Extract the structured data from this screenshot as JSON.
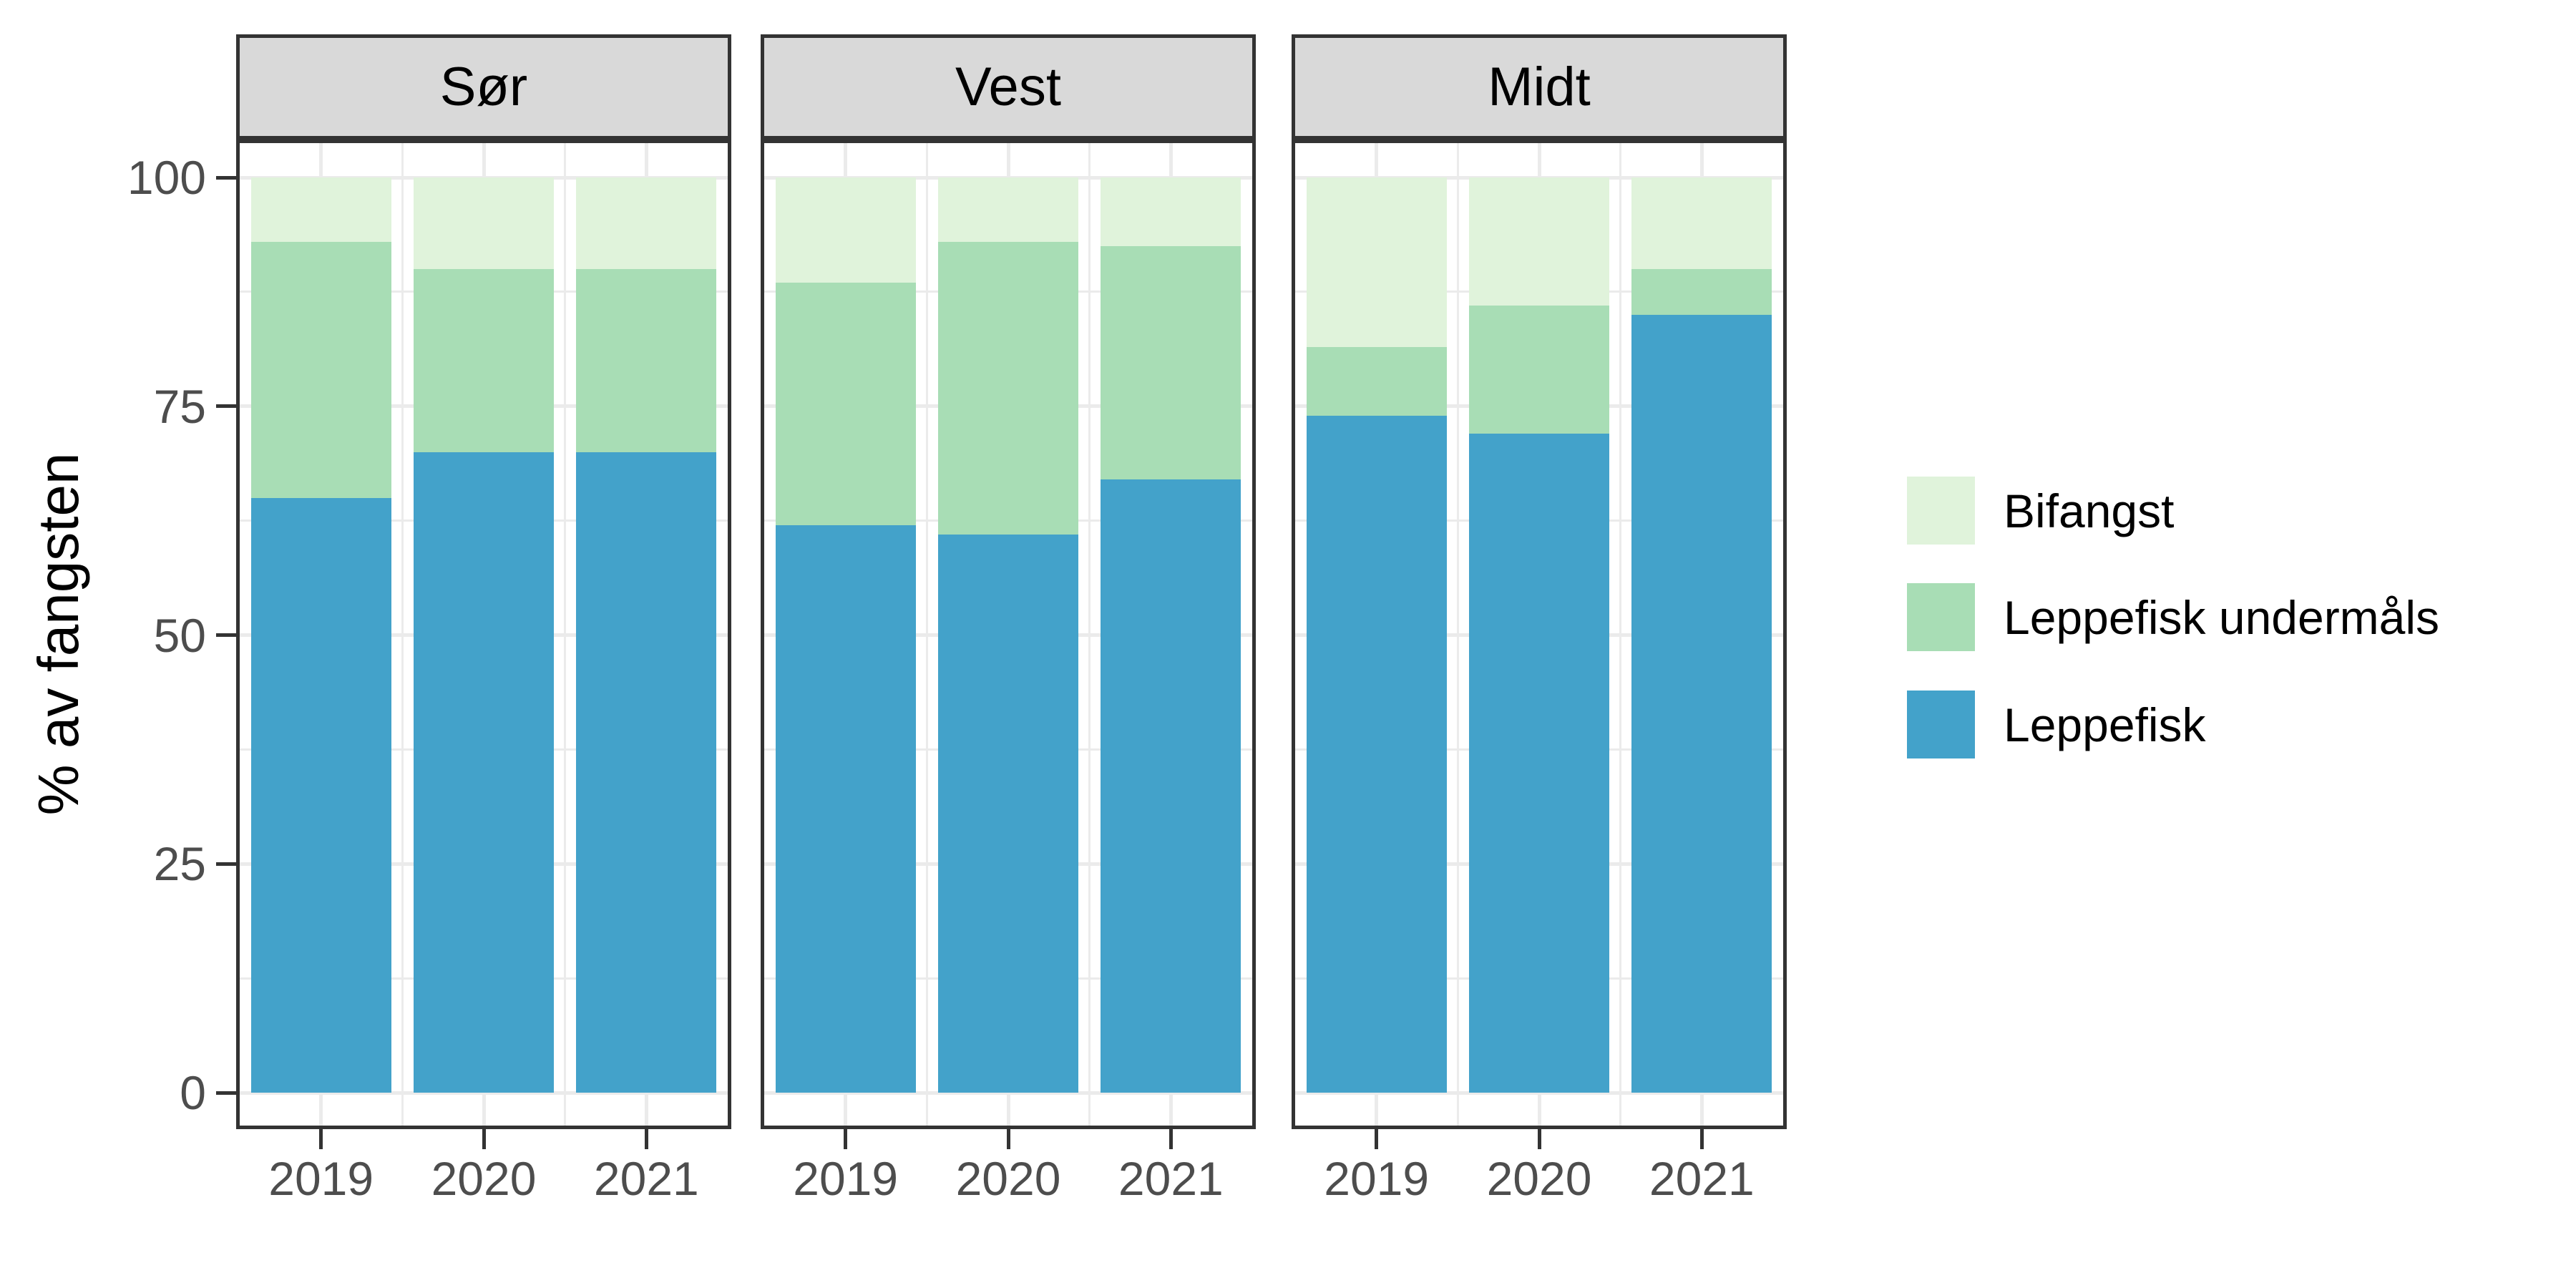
{
  "chart_data": {
    "type": "bar",
    "stacked": true,
    "percent": true,
    "ylabel": "% av fangsten",
    "ylim": [
      0,
      100
    ],
    "yticks": [
      0,
      25,
      50,
      75,
      100
    ],
    "yticks_minor": [
      12.5,
      37.5,
      62.5,
      87.5
    ],
    "categories": [
      "2019",
      "2020",
      "2021"
    ],
    "facets": [
      {
        "name": "Sør",
        "series": [
          {
            "name": "Leppefisk",
            "values": [
              65,
              70,
              70
            ]
          },
          {
            "name": "Leppefisk undermåls",
            "values": [
              28,
              20,
              20
            ]
          },
          {
            "name": "Bifangst",
            "values": [
              7,
              10,
              10
            ]
          }
        ]
      },
      {
        "name": "Vest",
        "series": [
          {
            "name": "Leppefisk",
            "values": [
              62,
              61,
              67
            ]
          },
          {
            "name": "Leppefisk undermåls",
            "values": [
              26.5,
              32,
              25.5
            ]
          },
          {
            "name": "Bifangst",
            "values": [
              11.5,
              7,
              7.5
            ]
          }
        ]
      },
      {
        "name": "Midt",
        "series": [
          {
            "name": "Leppefisk",
            "values": [
              74,
              72,
              85
            ]
          },
          {
            "name": "Leppefisk undermåls",
            "values": [
              7.5,
              14,
              5
            ]
          },
          {
            "name": "Bifangst",
            "values": [
              18.5,
              14,
              10
            ]
          }
        ]
      }
    ],
    "series_colors": {
      "Leppefisk": "#43A2CA",
      "Leppefisk undermåls": "#A8DDB5",
      "Bifangst": "#E0F3DB"
    },
    "legend": [
      "Bifangst",
      "Leppefisk undermåls",
      "Leppefisk"
    ],
    "legend_position": "right",
    "facet_strip_bg": "#D9D9D9",
    "grid": true
  }
}
